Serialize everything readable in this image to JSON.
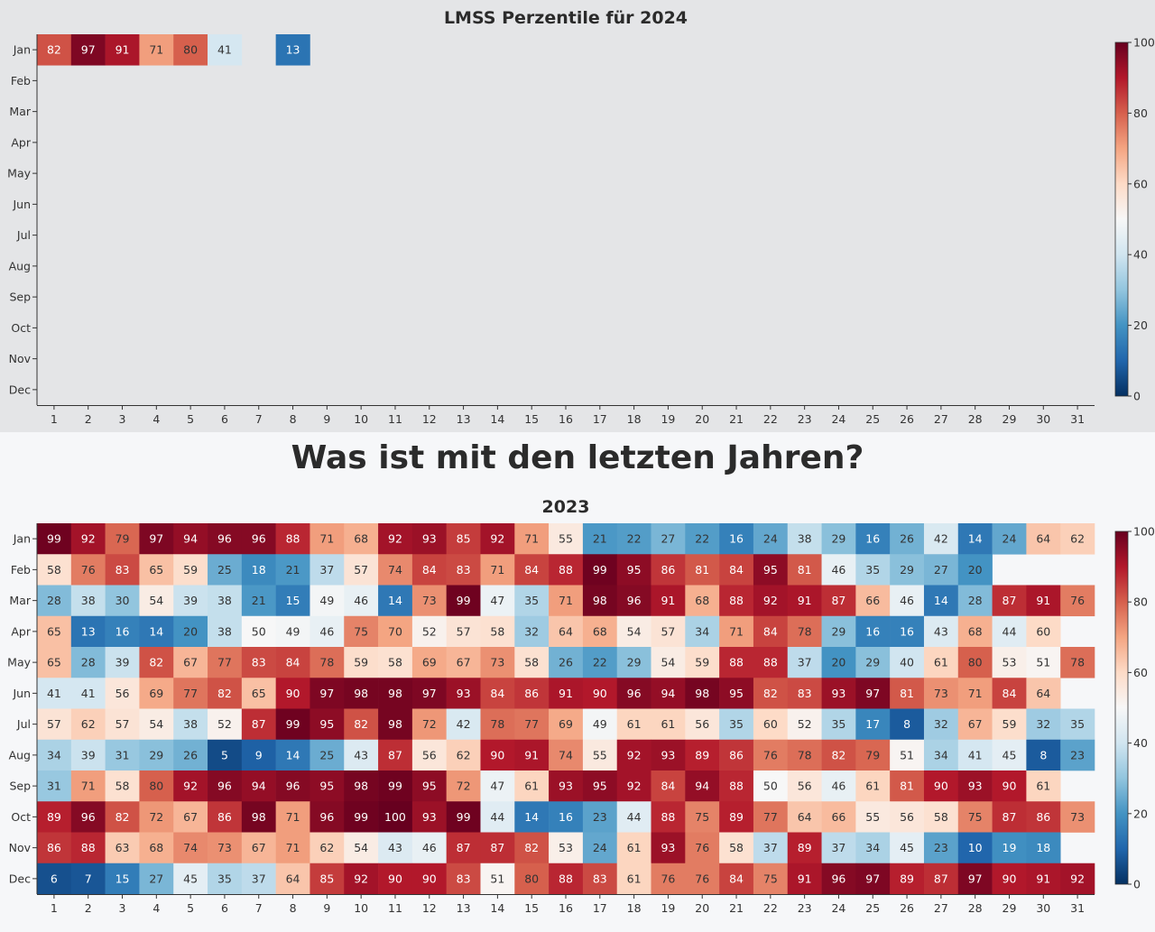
{
  "section_heading": "Was ist mit den letzten Jahren?",
  "colorbar_ticks": [
    0,
    20,
    40,
    60,
    80,
    100
  ],
  "chart_data": [
    {
      "type": "heatmap",
      "title": "LMSS Perzentile für 2024",
      "x": [
        1,
        2,
        3,
        4,
        5,
        6,
        7,
        8,
        9,
        10,
        11,
        12,
        13,
        14,
        15,
        16,
        17,
        18,
        19,
        20,
        21,
        22,
        23,
        24,
        25,
        26,
        27,
        28,
        29,
        30,
        31
      ],
      "y": [
        "Jan",
        "Feb",
        "Mar",
        "Apr",
        "May",
        "Jun",
        "Jul",
        "Aug",
        "Sep",
        "Oct",
        "Nov",
        "Dec"
      ],
      "zlim": [
        0,
        100
      ],
      "colorscale": "red-blue diverging",
      "values": [
        [
          82,
          97,
          91,
          71,
          80,
          41,
          null,
          13,
          null,
          null,
          null,
          null,
          null,
          null,
          null,
          null,
          null,
          null,
          null,
          null,
          null,
          null,
          null,
          null,
          null,
          null,
          null,
          null,
          null,
          null,
          null
        ],
        [
          null,
          null,
          null,
          null,
          null,
          null,
          null,
          null,
          null,
          null,
          null,
          null,
          null,
          null,
          null,
          null,
          null,
          null,
          null,
          null,
          null,
          null,
          null,
          null,
          null,
          null,
          null,
          null,
          null,
          null,
          null
        ],
        [
          null,
          null,
          null,
          null,
          null,
          null,
          null,
          null,
          null,
          null,
          null,
          null,
          null,
          null,
          null,
          null,
          null,
          null,
          null,
          null,
          null,
          null,
          null,
          null,
          null,
          null,
          null,
          null,
          null,
          null,
          null
        ],
        [
          null,
          null,
          null,
          null,
          null,
          null,
          null,
          null,
          null,
          null,
          null,
          null,
          null,
          null,
          null,
          null,
          null,
          null,
          null,
          null,
          null,
          null,
          null,
          null,
          null,
          null,
          null,
          null,
          null,
          null,
          null
        ],
        [
          null,
          null,
          null,
          null,
          null,
          null,
          null,
          null,
          null,
          null,
          null,
          null,
          null,
          null,
          null,
          null,
          null,
          null,
          null,
          null,
          null,
          null,
          null,
          null,
          null,
          null,
          null,
          null,
          null,
          null,
          null
        ],
        [
          null,
          null,
          null,
          null,
          null,
          null,
          null,
          null,
          null,
          null,
          null,
          null,
          null,
          null,
          null,
          null,
          null,
          null,
          null,
          null,
          null,
          null,
          null,
          null,
          null,
          null,
          null,
          null,
          null,
          null,
          null
        ],
        [
          null,
          null,
          null,
          null,
          null,
          null,
          null,
          null,
          null,
          null,
          null,
          null,
          null,
          null,
          null,
          null,
          null,
          null,
          null,
          null,
          null,
          null,
          null,
          null,
          null,
          null,
          null,
          null,
          null,
          null,
          null
        ],
        [
          null,
          null,
          null,
          null,
          null,
          null,
          null,
          null,
          null,
          null,
          null,
          null,
          null,
          null,
          null,
          null,
          null,
          null,
          null,
          null,
          null,
          null,
          null,
          null,
          null,
          null,
          null,
          null,
          null,
          null,
          null
        ],
        [
          null,
          null,
          null,
          null,
          null,
          null,
          null,
          null,
          null,
          null,
          null,
          null,
          null,
          null,
          null,
          null,
          null,
          null,
          null,
          null,
          null,
          null,
          null,
          null,
          null,
          null,
          null,
          null,
          null,
          null,
          null
        ],
        [
          null,
          null,
          null,
          null,
          null,
          null,
          null,
          null,
          null,
          null,
          null,
          null,
          null,
          null,
          null,
          null,
          null,
          null,
          null,
          null,
          null,
          null,
          null,
          null,
          null,
          null,
          null,
          null,
          null,
          null,
          null
        ],
        [
          null,
          null,
          null,
          null,
          null,
          null,
          null,
          null,
          null,
          null,
          null,
          null,
          null,
          null,
          null,
          null,
          null,
          null,
          null,
          null,
          null,
          null,
          null,
          null,
          null,
          null,
          null,
          null,
          null,
          null,
          null
        ],
        [
          null,
          null,
          null,
          null,
          null,
          null,
          null,
          null,
          null,
          null,
          null,
          null,
          null,
          null,
          null,
          null,
          null,
          null,
          null,
          null,
          null,
          null,
          null,
          null,
          null,
          null,
          null,
          null,
          null,
          null,
          null
        ]
      ]
    },
    {
      "type": "heatmap",
      "title": "2023",
      "x": [
        1,
        2,
        3,
        4,
        5,
        6,
        7,
        8,
        9,
        10,
        11,
        12,
        13,
        14,
        15,
        16,
        17,
        18,
        19,
        20,
        21,
        22,
        23,
        24,
        25,
        26,
        27,
        28,
        29,
        30,
        31
      ],
      "y": [
        "Jan",
        "Feb",
        "Mar",
        "Apr",
        "May",
        "Jun",
        "Jul",
        "Aug",
        "Sep",
        "Oct",
        "Nov",
        "Dec"
      ],
      "zlim": [
        0,
        100
      ],
      "colorscale": "red-blue diverging",
      "values": [
        [
          99,
          92,
          79,
          97,
          94,
          96,
          96,
          88,
          71,
          68,
          92,
          93,
          85,
          92,
          71,
          55,
          21,
          22,
          27,
          22,
          16,
          24,
          38,
          29,
          16,
          26,
          42,
          14,
          24,
          64,
          62
        ],
        [
          58,
          76,
          83,
          65,
          59,
          25,
          18,
          21,
          37,
          57,
          74,
          84,
          83,
          71,
          84,
          88,
          99,
          95,
          86,
          81,
          84,
          95,
          81,
          46,
          35,
          29,
          27,
          20,
          null,
          null,
          null
        ],
        [
          28,
          38,
          30,
          54,
          39,
          38,
          21,
          15,
          49,
          46,
          14,
          73,
          99,
          47,
          35,
          71,
          98,
          96,
          91,
          68,
          88,
          92,
          91,
          87,
          66,
          46,
          14,
          28,
          87,
          91,
          76
        ],
        [
          65,
          13,
          16,
          14,
          20,
          38,
          50,
          49,
          46,
          75,
          70,
          52,
          57,
          58,
          32,
          64,
          68,
          54,
          57,
          34,
          71,
          84,
          78,
          29,
          16,
          16,
          43,
          68,
          44,
          60,
          null
        ],
        [
          65,
          28,
          39,
          82,
          67,
          77,
          83,
          84,
          78,
          59,
          58,
          69,
          67,
          73,
          58,
          26,
          22,
          29,
          54,
          59,
          88,
          88,
          37,
          20,
          29,
          40,
          61,
          80,
          53,
          51,
          78
        ],
        [
          41,
          41,
          56,
          69,
          77,
          82,
          65,
          90,
          97,
          98,
          98,
          97,
          93,
          84,
          86,
          91,
          90,
          96,
          94,
          98,
          95,
          82,
          83,
          93,
          97,
          81,
          73,
          71,
          84,
          64,
          null
        ],
        [
          57,
          62,
          57,
          54,
          38,
          52,
          87,
          99,
          95,
          82,
          98,
          72,
          42,
          78,
          77,
          69,
          49,
          61,
          61,
          56,
          35,
          60,
          52,
          35,
          17,
          8,
          32,
          67,
          59,
          32,
          35
        ],
        [
          34,
          39,
          31,
          29,
          26,
          5,
          9,
          14,
          25,
          43,
          87,
          56,
          62,
          90,
          91,
          74,
          55,
          92,
          93,
          89,
          86,
          76,
          78,
          82,
          79,
          51,
          34,
          41,
          45,
          8,
          23
        ],
        [
          31,
          71,
          58,
          80,
          92,
          96,
          94,
          96,
          95,
          98,
          99,
          95,
          72,
          47,
          61,
          93,
          95,
          92,
          84,
          94,
          88,
          50,
          56,
          46,
          61,
          81,
          90,
          93,
          90,
          61,
          null
        ],
        [
          89,
          96,
          82,
          72,
          67,
          86,
          98,
          71,
          96,
          99,
          100,
          93,
          99,
          44,
          14,
          16,
          23,
          44,
          88,
          75,
          89,
          77,
          64,
          66,
          55,
          56,
          58,
          75,
          87,
          86,
          73
        ],
        [
          86,
          88,
          63,
          68,
          74,
          73,
          67,
          71,
          62,
          54,
          43,
          46,
          87,
          87,
          82,
          53,
          24,
          61,
          93,
          76,
          58,
          37,
          89,
          37,
          34,
          45,
          23,
          10,
          19,
          18,
          null
        ],
        [
          6,
          7,
          15,
          27,
          45,
          35,
          37,
          64,
          85,
          92,
          90,
          90,
          83,
          51,
          80,
          88,
          83,
          61,
          76,
          76,
          84,
          75,
          91,
          96,
          97,
          89,
          87,
          97,
          90,
          91,
          92
        ]
      ]
    }
  ]
}
